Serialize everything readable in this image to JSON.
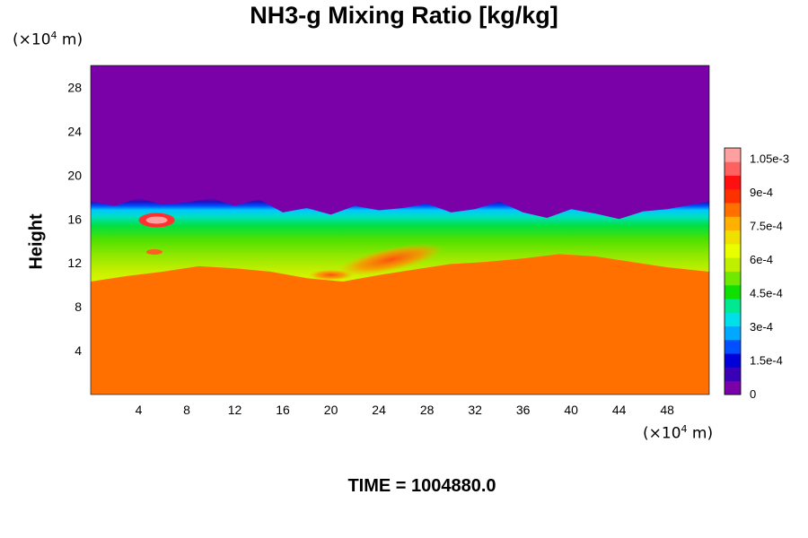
{
  "chart_data": {
    "type": "heatmap",
    "title": "NH3-g Mixing Ratio [kg/kg]",
    "ylabel": "Height",
    "x_unit": "(×10⁴ m)",
    "y_unit": "(×10⁴ m)",
    "unit_prefix": "(×10",
    "unit_exp": "4",
    "unit_suffix": " m)",
    "xlim": [
      0,
      51.5
    ],
    "ylim": [
      0,
      30
    ],
    "x_ticks": [
      4,
      8,
      12,
      16,
      20,
      24,
      28,
      32,
      36,
      40,
      44,
      48
    ],
    "y_ticks": [
      4,
      8,
      12,
      16,
      20,
      24,
      28
    ],
    "colorbar": {
      "range": [
        0,
        0.0011
      ],
      "tick_values": [
        0,
        0.00015,
        0.0003,
        0.00045,
        0.0006,
        0.00075,
        0.0009,
        0.00105
      ],
      "tick_labels": [
        "0",
        "1.5e-4",
        "3e-4",
        "4.5e-4",
        "6e-4",
        "7.5e-4",
        "9e-4",
        "1.05e-3"
      ],
      "colors": [
        "#7a00a8",
        "#3a00b8",
        "#0000d8",
        "#0050ff",
        "#00a8ff",
        "#00e0e8",
        "#00e890",
        "#10e000",
        "#70e800",
        "#c0f000",
        "#e8ff00",
        "#f0e000",
        "#ffb000",
        "#ff7000",
        "#ff3000",
        "#ff1010",
        "#ff6060",
        "#ffa0a0"
      ]
    },
    "regions": [
      {
        "name": "upper layer",
        "value": 0.0
      },
      {
        "name": "lower layer",
        "value": 0.0008
      }
    ],
    "time_label": "TIME = 1004880.0"
  }
}
